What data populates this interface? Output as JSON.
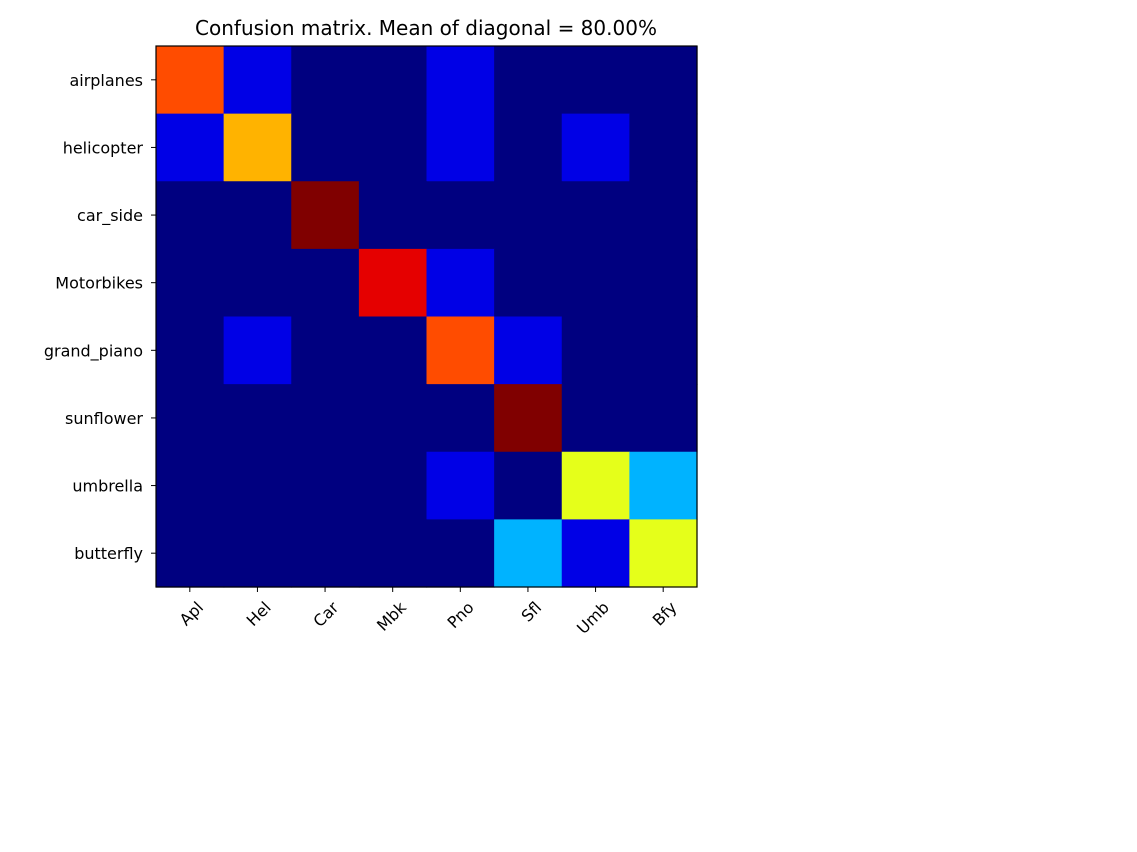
{
  "chart_data": {
    "type": "heatmap",
    "title": "Confusion matrix. Mean of diagonal = 80.00%",
    "xlabel": "",
    "ylabel": "",
    "row_labels": [
      "airplanes",
      "helicopter",
      "car_side",
      "Motorbikes",
      "grand_piano",
      "sunflower",
      "umbrella",
      "butterfly"
    ],
    "col_labels": [
      "Apl",
      "Hel",
      "Car",
      "Mbk",
      "Pno",
      "Sfl",
      "Umb",
      "Bfy"
    ],
    "values": [
      [
        0.8,
        0.1,
        0.0,
        0.0,
        0.1,
        0.0,
        0.0,
        0.0
      ],
      [
        0.1,
        0.7,
        0.0,
        0.0,
        0.1,
        0.0,
        0.1,
        0.0
      ],
      [
        0.0,
        0.0,
        1.0,
        0.0,
        0.0,
        0.0,
        0.0,
        0.0
      ],
      [
        0.0,
        0.0,
        0.0,
        0.9,
        0.1,
        0.0,
        0.0,
        0.0
      ],
      [
        0.0,
        0.1,
        0.0,
        0.0,
        0.8,
        0.1,
        0.0,
        0.0
      ],
      [
        0.0,
        0.0,
        0.0,
        0.0,
        0.0,
        1.0,
        0.0,
        0.0
      ],
      [
        0.0,
        0.0,
        0.0,
        0.0,
        0.1,
        0.0,
        0.6,
        0.3
      ],
      [
        0.0,
        0.0,
        0.0,
        0.0,
        0.0,
        0.3,
        0.1,
        0.6
      ]
    ],
    "value_range": [
      0,
      1
    ],
    "colormap": "jet",
    "x_tick_rotation_deg": 45,
    "grid": false,
    "legend": "none"
  }
}
